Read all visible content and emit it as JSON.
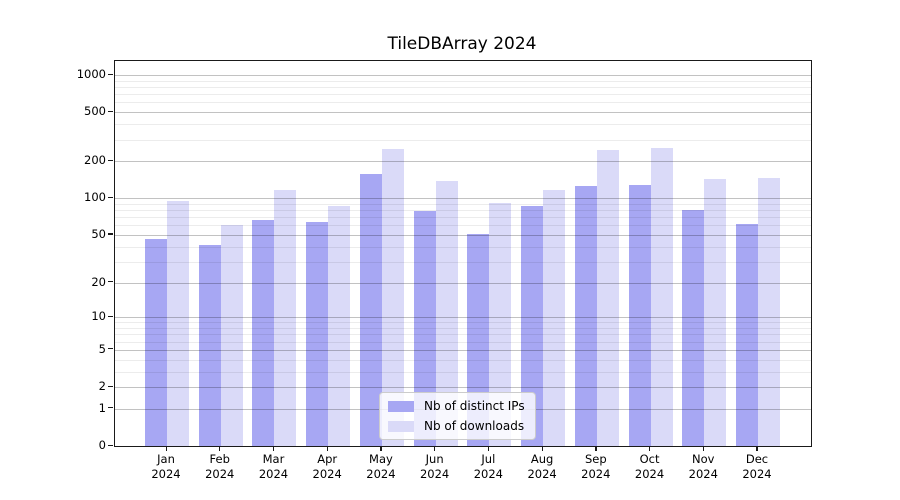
{
  "chart_data": {
    "type": "bar",
    "title": "TileDBArray 2024",
    "categories": [
      {
        "month": "Jan",
        "year": "2024"
      },
      {
        "month": "Feb",
        "year": "2024"
      },
      {
        "month": "Mar",
        "year": "2024"
      },
      {
        "month": "Apr",
        "year": "2024"
      },
      {
        "month": "May",
        "year": "2024"
      },
      {
        "month": "Jun",
        "year": "2024"
      },
      {
        "month": "Jul",
        "year": "2024"
      },
      {
        "month": "Aug",
        "year": "2024"
      },
      {
        "month": "Sep",
        "year": "2024"
      },
      {
        "month": "Oct",
        "year": "2024"
      },
      {
        "month": "Nov",
        "year": "2024"
      },
      {
        "month": "Dec",
        "year": "2024"
      }
    ],
    "series": [
      {
        "name": "Nb of distinct IPs",
        "color": "#a7a7f3",
        "values": [
          46,
          41,
          66,
          64,
          158,
          79,
          51,
          87,
          126,
          127,
          80,
          62
        ]
      },
      {
        "name": "Nb of downloads",
        "color": "#dadaf8",
        "values": [
          95,
          60,
          116,
          86,
          250,
          139,
          92,
          117,
          247,
          255,
          143,
          145
        ]
      }
    ],
    "yscale": "log1p",
    "ylim": [
      0,
      1000
    ],
    "y_ticks": [
      0,
      1,
      2,
      5,
      10,
      20,
      50,
      100,
      200,
      500,
      1000
    ],
    "y_minor_ticks": [
      3,
      4,
      6,
      7,
      8,
      9,
      30,
      40,
      60,
      70,
      80,
      90,
      300,
      400,
      600,
      700,
      800,
      900
    ],
    "grid": "on",
    "legend_position": "inside-bottom-center",
    "xlabel": "",
    "ylabel": ""
  }
}
